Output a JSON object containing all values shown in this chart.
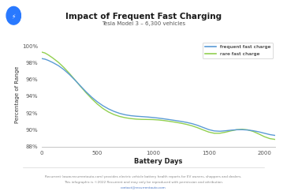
{
  "title": "Impact of Frequent Fast Charging",
  "subtitle": "Tesla Model 3 – 6,300 vehicles",
  "xlabel": "Battery Days",
  "ylabel": "Percentage of Range",
  "xlim": [
    0,
    2100
  ],
  "ylim": [
    0.879,
    1.005
  ],
  "yticks": [
    0.88,
    0.9,
    0.92,
    0.94,
    0.96,
    0.98,
    1.0
  ],
  "xticks": [
    0,
    500,
    1000,
    1500,
    2000
  ],
  "line_frequent_color": "#5b9bd5",
  "line_rare_color": "#92d050",
  "background_color": "#ffffff",
  "footer_line1": "Recurrent (www.recurrentauto.com) provides electric vehicle battery health reports for EV owners, shoppers and dealers.",
  "footer_line2": "This infographic is ©2022 Recurrent and may only be reproduced with permission and attribution.",
  "footer_line3": "contact@recurrentauto.com",
  "legend_labels": [
    "frequent fast charge",
    "rare fast charge"
  ],
  "icon_color": "#2979ff",
  "frequent_x": [
    0,
    30,
    60,
    100,
    150,
    200,
    250,
    300,
    350,
    400,
    450,
    500,
    550,
    600,
    650,
    700,
    750,
    800,
    850,
    900,
    950,
    1000,
    1050,
    1100,
    1150,
    1200,
    1250,
    1300,
    1350,
    1400,
    1450,
    1500,
    1550,
    1600,
    1650,
    1700,
    1750,
    1800,
    1850,
    1900,
    1950,
    2000,
    2050,
    2100
  ],
  "frequent_y": [
    0.986,
    0.985,
    0.984,
    0.982,
    0.978,
    0.973,
    0.967,
    0.96,
    0.952,
    0.944,
    0.938,
    0.932,
    0.928,
    0.924,
    0.921,
    0.919,
    0.917,
    0.916,
    0.916,
    0.916,
    0.915,
    0.915,
    0.914,
    0.913,
    0.912,
    0.911,
    0.91,
    0.909,
    0.908,
    0.906,
    0.904,
    0.898,
    0.896,
    0.897,
    0.899,
    0.9,
    0.9,
    0.901,
    0.9,
    0.899,
    0.898,
    0.897,
    0.892,
    0.892
  ],
  "rare_x": [
    0,
    30,
    60,
    100,
    150,
    200,
    250,
    300,
    350,
    400,
    450,
    500,
    550,
    600,
    650,
    700,
    750,
    800,
    850,
    900,
    950,
    1000,
    1050,
    1100,
    1150,
    1200,
    1250,
    1300,
    1350,
    1400,
    1450,
    1500,
    1550,
    1600,
    1650,
    1700,
    1750,
    1800,
    1850,
    1900,
    1950,
    2000,
    2050,
    2100
  ],
  "rare_y": [
    0.994,
    0.993,
    0.991,
    0.988,
    0.982,
    0.975,
    0.968,
    0.96,
    0.951,
    0.943,
    0.937,
    0.929,
    0.924,
    0.92,
    0.917,
    0.915,
    0.914,
    0.913,
    0.912,
    0.912,
    0.912,
    0.913,
    0.912,
    0.911,
    0.91,
    0.909,
    0.908,
    0.907,
    0.905,
    0.903,
    0.901,
    0.895,
    0.893,
    0.894,
    0.897,
    0.899,
    0.901,
    0.902,
    0.901,
    0.9,
    0.896,
    0.89,
    0.885,
    0.889
  ]
}
